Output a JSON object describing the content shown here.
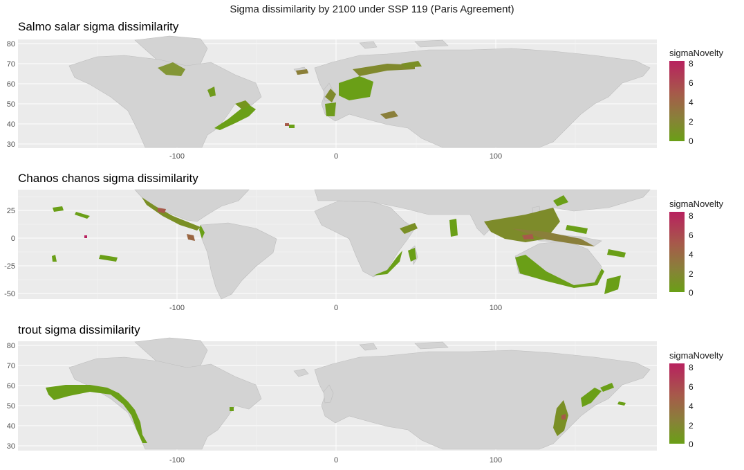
{
  "title": "Sigma dissimilarity by 2100 under SSP 119 (Paris Agreement)",
  "colors": {
    "panel_bg": "#ebebeb",
    "grid_major": "#ffffff",
    "land": "#d3d3d3",
    "land_border": "#b8b8b8",
    "low": "#6a9f17",
    "high": "#b8215f"
  },
  "panels": [
    {
      "title": "Salmo salar sigma dissimilarity",
      "legend_title": "sigmaNovelty",
      "legend_ticks": [
        "8",
        "6",
        "4",
        "2",
        "0"
      ],
      "x_ticks": [
        "-100",
        "0",
        "100"
      ],
      "y_ticks": [
        "80",
        "70",
        "60",
        "50",
        "40",
        "30"
      ]
    },
    {
      "title": "Chanos chanos sigma dissimilarity",
      "legend_title": "sigmaNovelty",
      "legend_ticks": [
        "8",
        "6",
        "4",
        "2",
        "0"
      ],
      "x_ticks": [
        "-100",
        "0",
        "100"
      ],
      "y_ticks": [
        "25",
        "0",
        "-25",
        "-50"
      ]
    },
    {
      "title": "trout sigma dissimilarity",
      "legend_title": "sigmaNovelty",
      "legend_ticks": [
        "8",
        "6",
        "4",
        "2",
        "0"
      ],
      "x_ticks": [
        "-100",
        "0",
        "100"
      ],
      "y_ticks": [
        "80",
        "70",
        "60",
        "50",
        "40",
        "30"
      ]
    }
  ]
}
